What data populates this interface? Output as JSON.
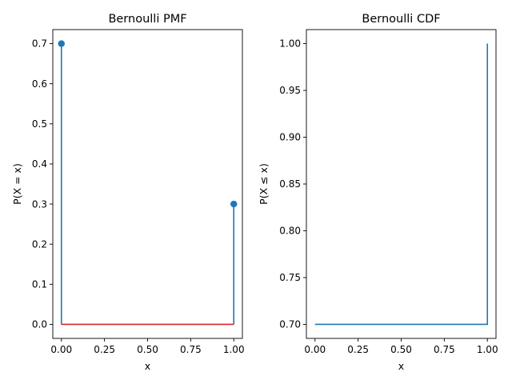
{
  "chart_data": [
    {
      "type": "stem",
      "title": "Bernoulli PMF",
      "xlabel": "x",
      "ylabel": "P(X = x)",
      "xlim": [
        -0.05,
        1.05
      ],
      "ylim": [
        -0.035,
        0.735
      ],
      "xticks": [
        "0.00",
        "0.25",
        "0.50",
        "0.75",
        "1.00"
      ],
      "xtick_values": [
        0,
        0.25,
        0.5,
        0.75,
        1.0
      ],
      "yticks": [
        "0.0",
        "0.1",
        "0.2",
        "0.3",
        "0.4",
        "0.5",
        "0.6",
        "0.7"
      ],
      "ytick_values": [
        0,
        0.1,
        0.2,
        0.3,
        0.4,
        0.5,
        0.6,
        0.7
      ],
      "x": [
        0,
        1
      ],
      "values": [
        0.7,
        0.3
      ],
      "colors": {
        "stem": "#1f77b4",
        "baseline": "#d62728"
      }
    },
    {
      "type": "step",
      "title": "Bernoulli CDF",
      "xlabel": "x",
      "ylabel": "P(X ≤ x)",
      "xlim": [
        -0.05,
        1.05
      ],
      "ylim": [
        0.685,
        1.015
      ],
      "xticks": [
        "0.00",
        "0.25",
        "0.50",
        "0.75",
        "1.00"
      ],
      "xtick_values": [
        0,
        0.25,
        0.5,
        0.75,
        1.0
      ],
      "yticks": [
        "0.70",
        "0.75",
        "0.80",
        "0.85",
        "0.90",
        "0.95",
        "1.00"
      ],
      "ytick_values": [
        0.7,
        0.75,
        0.8,
        0.85,
        0.9,
        0.95,
        1.0
      ],
      "x": [
        0,
        1
      ],
      "values": [
        0.7,
        1.0
      ],
      "colors": {
        "line": "#1f77b4"
      }
    }
  ]
}
